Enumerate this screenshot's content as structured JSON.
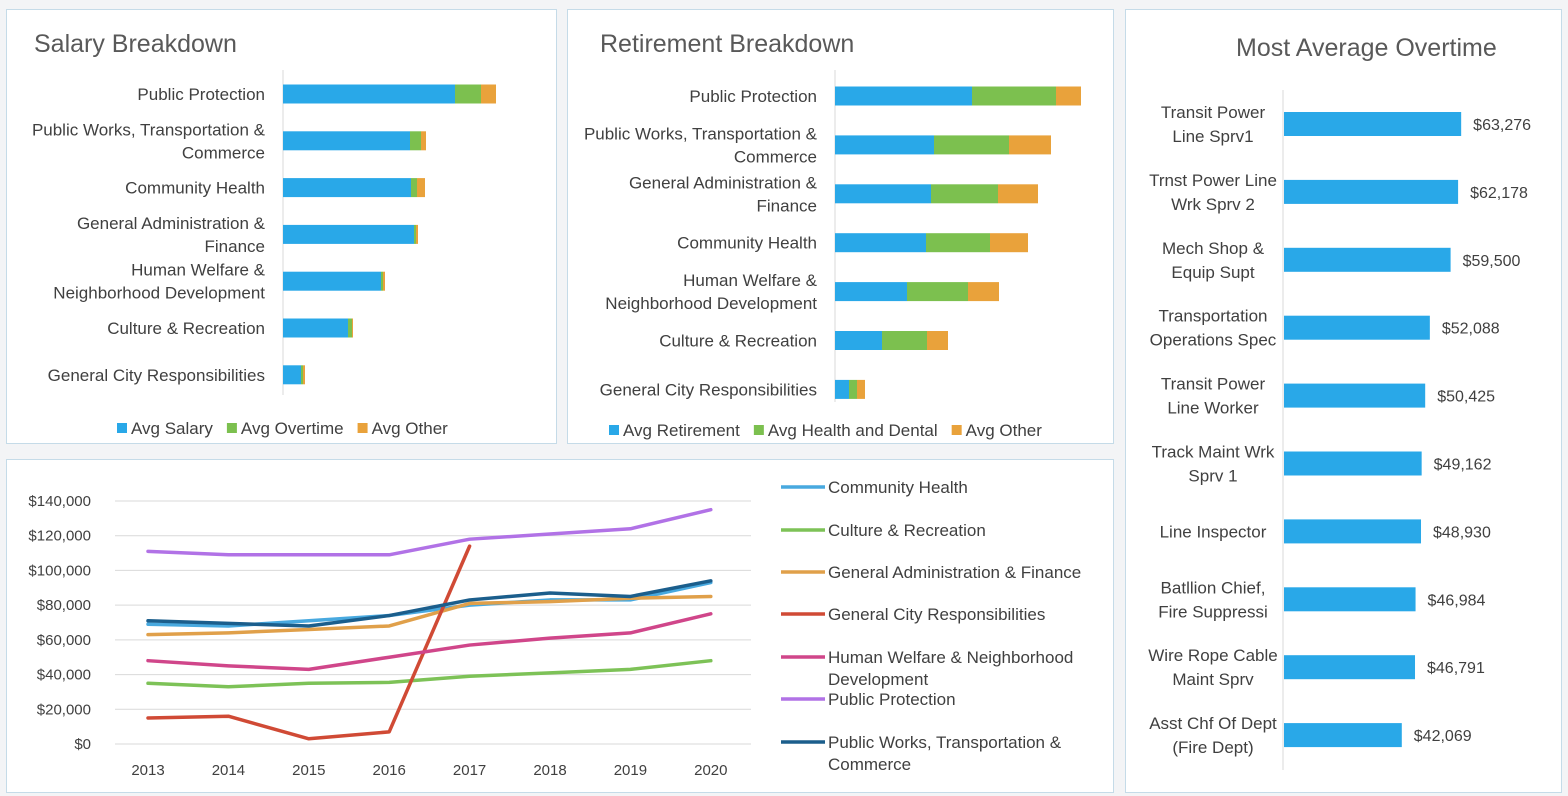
{
  "chart_data": [
    {
      "type": "bar",
      "orientation": "horizontal",
      "stacked": true,
      "title": "Salary Breakdown",
      "categories": [
        "Public Protection",
        "Public Works, Transportation & Commerce",
        "Community Health",
        "General Administration & Finance",
        "Human Welfare & Neighborhood Development",
        "Culture & Recreation",
        "General City Responsibilities"
      ],
      "category_lines": [
        [
          "Public Protection"
        ],
        [
          "Public Works, Transportation &",
          "Commerce"
        ],
        [
          "Community Health"
        ],
        [
          "General Administration &",
          "Finance"
        ],
        [
          "Human Welfare &",
          "Neighborhood Development"
        ],
        [
          "Culture & Recreation"
        ],
        [
          "General City Responsibilities"
        ]
      ],
      "series": [
        {
          "name": "Avg Salary",
          "values": [
            172,
            127,
            128,
            131,
            98,
            65,
            18
          ]
        },
        {
          "name": "Avg Overtime",
          "values": [
            26,
            11,
            6,
            2,
            2,
            4,
            2
          ]
        },
        {
          "name": "Avg Other",
          "values": [
            15,
            5,
            8,
            2,
            2,
            1,
            2
          ]
        }
      ],
      "legend": "bottom",
      "xaxis_visible": false
    },
    {
      "type": "bar",
      "orientation": "horizontal",
      "stacked": true,
      "title": "Retirement Breakdown",
      "categories": [
        "Public Protection",
        "Public Works, Transportation & Commerce",
        "General Administration & Finance",
        "Community Health",
        "Human Welfare & Neighborhood Development",
        "Culture & Recreation",
        "General City Responsibilities"
      ],
      "category_lines": [
        [
          "Public Protection"
        ],
        [
          "Public Works, Transportation &",
          "Commerce"
        ],
        [
          "General Administration &",
          "Finance"
        ],
        [
          "Community Health"
        ],
        [
          "Human Welfare &",
          "Neighborhood Development"
        ],
        [
          "Culture & Recreation"
        ],
        [
          "General City Responsibilities"
        ]
      ],
      "series": [
        {
          "name": "Avg Retirement",
          "values": [
            137,
            99,
            96,
            91,
            72,
            47,
            14
          ]
        },
        {
          "name": "Avg Health and Dental",
          "values": [
            84,
            75,
            67,
            64,
            61,
            45,
            8
          ]
        },
        {
          "name": "Avg Other",
          "values": [
            25,
            42,
            40,
            38,
            31,
            21,
            8
          ]
        }
      ],
      "legend": "bottom",
      "xaxis_visible": false
    },
    {
      "type": "bar",
      "orientation": "horizontal",
      "title": "Most Average Overtime",
      "categories": [
        "Transit Power Line Sprv1",
        "Trnst Power Line Wrk Sprv 2",
        "Mech Shop & Equip Supt",
        "Transportation Operations Spec",
        "Transit Power Line Worker",
        "Track Maint Wrk Sprv 1",
        "Line Inspector",
        "Batllion Chief, Fire Suppressi",
        "Wire Rope Cable Maint Sprv",
        "Asst Chf Of Dept (Fire Dept)"
      ],
      "category_lines": [
        [
          "Transit Power",
          "Line Sprv1"
        ],
        [
          "Trnst Power Line",
          "Wrk Sprv 2"
        ],
        [
          "Mech Shop &",
          "Equip Supt"
        ],
        [
          "Transportation",
          "Operations Spec"
        ],
        [
          "Transit Power",
          "Line Worker"
        ],
        [
          "Track Maint Wrk",
          "Sprv 1"
        ],
        [
          "Line Inspector"
        ],
        [
          "Batllion Chief,",
          "Fire Suppressi"
        ],
        [
          "Wire Rope Cable",
          "Maint Sprv"
        ],
        [
          "Asst Chf Of Dept",
          "(Fire Dept)"
        ]
      ],
      "values": [
        63276,
        62178,
        59500,
        52088,
        50425,
        49162,
        48930,
        46984,
        46791,
        42069
      ],
      "data_labels": [
        "$63,276",
        "$62,178",
        "$59,500",
        "$52,088",
        "$50,425",
        "$49,162",
        "$48,930",
        "$46,984",
        "$46,791",
        "$42,069"
      ],
      "color": "#29a8e8",
      "xaxis_visible": false
    },
    {
      "type": "line",
      "x": [
        "2013",
        "2014",
        "2015",
        "2016",
        "2017",
        "2018",
        "2019",
        "2020"
      ],
      "ylim": [
        0,
        140000
      ],
      "yticks": [
        0,
        20000,
        40000,
        60000,
        80000,
        100000,
        120000,
        140000
      ],
      "ytick_labels": [
        "$0",
        "$20,000",
        "$40,000",
        "$60,000",
        "$80,000",
        "$100,000",
        "$120,000",
        "$140,000"
      ],
      "grid": true,
      "legend": "right",
      "series": [
        {
          "name": "Community Health",
          "name_lines": [
            "Community Health"
          ],
          "values": [
            69000,
            68000,
            71000,
            74000,
            80000,
            83000,
            83000,
            93000
          ]
        },
        {
          "name": "Culture & Recreation",
          "name_lines": [
            "Culture & Recreation"
          ],
          "values": [
            35000,
            33000,
            35000,
            35500,
            39000,
            41000,
            43000,
            48000
          ]
        },
        {
          "name": "General Administration & Finance",
          "name_lines": [
            "General Administration & Finance"
          ],
          "values": [
            63000,
            64000,
            66000,
            68000,
            81000,
            82000,
            84000,
            85000
          ]
        },
        {
          "name": "General City Responsibilities",
          "name_lines": [
            "General City Responsibilities"
          ],
          "values": [
            15000,
            16000,
            3000,
            7000,
            114000,
            null,
            null,
            null
          ]
        },
        {
          "name": "Human Welfare & Neighborhood Development",
          "name_lines": [
            "Human Welfare & Neighborhood",
            "Development"
          ],
          "values": [
            48000,
            45000,
            43000,
            50000,
            57000,
            61000,
            64000,
            75000
          ]
        },
        {
          "name": "Public Protection",
          "name_lines": [
            "Public Protection"
          ],
          "values": [
            111000,
            109000,
            109000,
            109000,
            118000,
            121000,
            124000,
            135000
          ]
        },
        {
          "name": "Public Works, Transportation & Commerce",
          "name_lines": [
            "Public Works, Transportation &",
            "Commerce"
          ],
          "values": [
            71000,
            69500,
            68000,
            74000,
            83000,
            87000,
            85000,
            94000
          ]
        }
      ]
    }
  ],
  "colors": {
    "blue": "#29a8e8",
    "green": "#7cc04f",
    "orange": "#e9a23b",
    "line_community_health": "#48a9df",
    "line_culture": "#7dc257",
    "line_general_admin": "#e0a04a",
    "line_general_city": "#d04a35",
    "line_human_welfare": "#d0468a",
    "line_public_protection": "#b172e6",
    "line_public_works": "#1b5e8c",
    "text": "#404040",
    "grid": "#d9d9d9"
  }
}
